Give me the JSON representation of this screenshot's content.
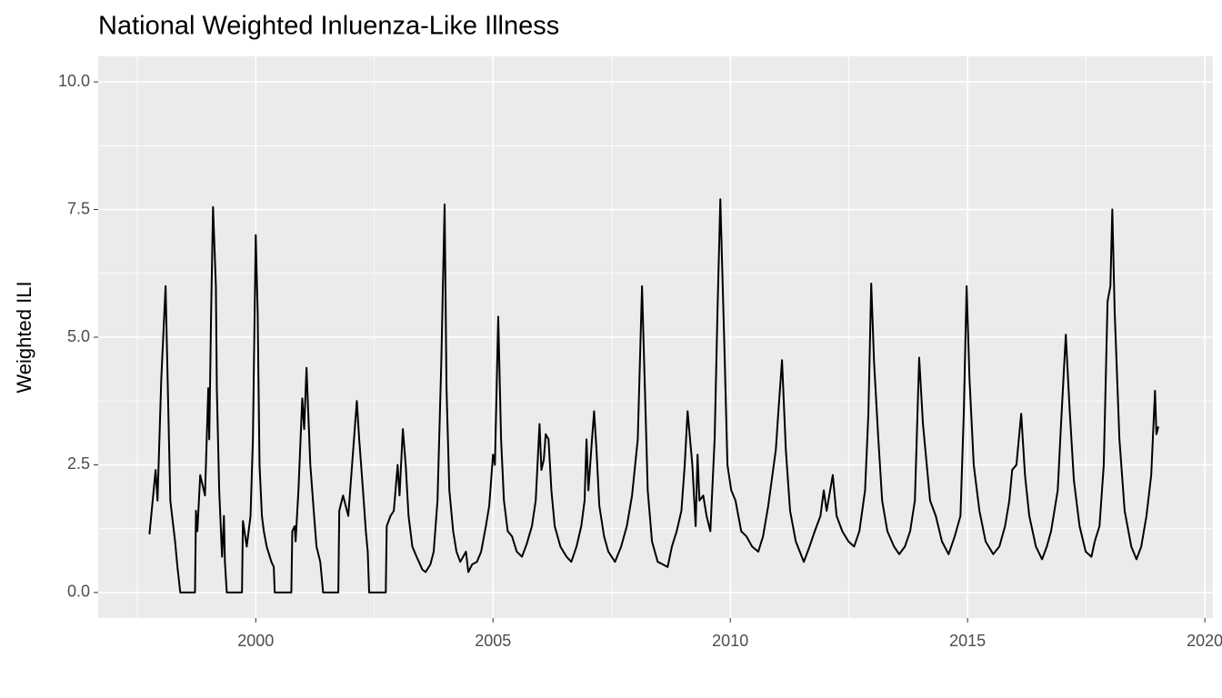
{
  "chart_data": {
    "type": "line",
    "title": "National Weighted Inluenza-Like Illness",
    "y_label": "Weighted ILI",
    "xlim": [
      1996.68,
      2020.17
    ],
    "ylim": [
      -0.5,
      10.5
    ],
    "xticks": [
      2000,
      2005,
      2010,
      2015,
      2020
    ],
    "yticks": [
      {
        "value": 0,
        "label": "0.0"
      },
      {
        "value": 2.5,
        "label": "2.5"
      },
      {
        "value": 5,
        "label": "5.0"
      },
      {
        "value": 7.5,
        "label": "7.5"
      },
      {
        "value": 10,
        "label": "10.0"
      }
    ],
    "x_minor_grid": [
      1997.5,
      2002.5,
      2007.5,
      2012.5,
      2017.5
    ],
    "y_minor_grid": [
      1.25,
      3.75,
      6.25,
      8.75
    ],
    "grid": true,
    "series": [
      {
        "color": "#000000",
        "x": [
          1997.76,
          1997.89,
          1997.93,
          1998.01,
          1998.1,
          1998.2,
          1998.3,
          1998.35,
          1998.41,
          1998.72,
          1998.74,
          1998.77,
          1998.83,
          1998.93,
          1999.0,
          1999.02,
          1999.06,
          1999.1,
          1999.16,
          1999.18,
          1999.23,
          1999.29,
          1999.33,
          1999.35,
          1999.39,
          1999.71,
          1999.73,
          1999.81,
          1999.89,
          1999.94,
          2000.0,
          2000.04,
          2000.08,
          2000.13,
          2000.17,
          2000.23,
          2000.33,
          2000.38,
          2000.4,
          2000.75,
          2000.77,
          2000.82,
          2000.84,
          2000.9,
          2000.98,
          2001.02,
          2001.07,
          2001.15,
          2001.23,
          2001.28,
          2001.36,
          2001.42,
          2001.74,
          2001.76,
          2001.84,
          2001.95,
          2002.03,
          2002.13,
          2002.18,
          2002.26,
          2002.32,
          2002.36,
          2002.39,
          2002.74,
          2002.76,
          2002.84,
          2002.91,
          2002.99,
          2003.03,
          2003.1,
          2003.16,
          2003.22,
          2003.3,
          2003.39,
          2003.51,
          2003.58,
          2003.68,
          2003.75,
          2003.83,
          2003.91,
          2003.98,
          2004.02,
          2004.08,
          2004.16,
          2004.23,
          2004.31,
          2004.37,
          2004.43,
          2004.48,
          2004.56,
          2004.66,
          2004.75,
          2004.85,
          2004.92,
          2005.0,
          2005.04,
          2005.11,
          2005.17,
          2005.23,
          2005.31,
          2005.4,
          2005.5,
          2005.61,
          2005.71,
          2005.82,
          2005.9,
          2005.98,
          2006.02,
          2006.07,
          2006.11,
          2006.17,
          2006.23,
          2006.3,
          2006.42,
          2006.55,
          2006.65,
          2006.76,
          2006.86,
          2006.93,
          2006.97,
          2007.01,
          2007.07,
          2007.13,
          2007.18,
          2007.24,
          2007.34,
          2007.43,
          2007.57,
          2007.7,
          2007.82,
          2007.93,
          2008.05,
          2008.14,
          2008.2,
          2008.26,
          2008.35,
          2008.47,
          2008.58,
          2008.68,
          2008.77,
          2008.87,
          2008.97,
          2009.04,
          2009.1,
          2009.2,
          2009.27,
          2009.31,
          2009.35,
          2009.43,
          2009.5,
          2009.58,
          2009.67,
          2009.73,
          2009.79,
          2009.87,
          2009.94,
          2010.02,
          2010.11,
          2010.23,
          2010.34,
          2010.46,
          2010.59,
          2010.69,
          2010.8,
          2010.96,
          2011.01,
          2011.09,
          2011.17,
          2011.26,
          2011.38,
          2011.55,
          2011.67,
          2011.78,
          2011.9,
          2011.97,
          2012.03,
          2012.16,
          2012.24,
          2012.36,
          2012.49,
          2012.61,
          2012.72,
          2012.84,
          2012.91,
          2012.97,
          2013.03,
          2013.12,
          2013.2,
          2013.31,
          2013.45,
          2013.56,
          2013.68,
          2013.79,
          2013.89,
          2013.98,
          2014.06,
          2014.14,
          2014.21,
          2014.33,
          2014.46,
          2014.6,
          2014.73,
          2014.85,
          2014.92,
          2014.98,
          2015.04,
          2015.13,
          2015.25,
          2015.38,
          2015.54,
          2015.67,
          2015.79,
          2015.88,
          2015.94,
          2016.03,
          2016.13,
          2016.21,
          2016.3,
          2016.44,
          2016.57,
          2016.67,
          2016.76,
          2016.9,
          2016.97,
          2017.07,
          2017.15,
          2017.24,
          2017.36,
          2017.49,
          2017.61,
          2017.68,
          2017.78,
          2017.87,
          2017.95,
          2018.01,
          2018.05,
          2018.1,
          2018.2,
          2018.31,
          2018.45,
          2018.56,
          2018.66,
          2018.77,
          2018.87,
          2018.95,
          2018.98,
          2019.02
        ],
        "values": [
          1.14,
          2.4,
          1.8,
          4.2,
          6.0,
          1.8,
          1.0,
          0.5,
          0,
          0,
          1.6,
          1.2,
          2.3,
          1.9,
          4.0,
          3.0,
          5.5,
          7.55,
          6.0,
          4.0,
          2.0,
          0.7,
          1.5,
          0.6,
          0,
          0,
          1.4,
          0.9,
          1.5,
          3.0,
          7.0,
          5.5,
          2.5,
          1.5,
          1.2,
          0.9,
          0.6,
          0.5,
          0,
          0,
          1.2,
          1.3,
          1.0,
          2.0,
          3.8,
          3.2,
          4.4,
          2.5,
          1.5,
          0.9,
          0.6,
          0,
          0,
          1.6,
          1.9,
          1.5,
          2.5,
          3.75,
          3.0,
          2.0,
          1.2,
          0.8,
          0,
          0,
          1.3,
          1.5,
          1.6,
          2.5,
          1.9,
          3.2,
          2.5,
          1.5,
          0.9,
          0.7,
          0.45,
          0.4,
          0.55,
          0.8,
          1.8,
          4.5,
          7.6,
          4.0,
          2.0,
          1.2,
          0.8,
          0.6,
          0.7,
          0.8,
          0.4,
          0.55,
          0.6,
          0.8,
          1.3,
          1.7,
          2.7,
          2.5,
          5.4,
          3.0,
          1.8,
          1.2,
          1.1,
          0.8,
          0.7,
          0.95,
          1.3,
          1.8,
          3.3,
          2.4,
          2.6,
          3.1,
          3.0,
          2.0,
          1.3,
          0.9,
          0.7,
          0.6,
          0.9,
          1.3,
          1.8,
          3.0,
          2.0,
          2.8,
          3.55,
          2.8,
          1.7,
          1.1,
          0.8,
          0.6,
          0.9,
          1.3,
          1.9,
          3.0,
          6.0,
          4.0,
          2.0,
          1.0,
          0.6,
          0.55,
          0.5,
          0.9,
          1.2,
          1.6,
          2.5,
          3.55,
          2.5,
          1.3,
          2.7,
          1.8,
          1.9,
          1.5,
          1.2,
          3.0,
          5.5,
          7.7,
          5.0,
          2.5,
          2.0,
          1.8,
          1.2,
          1.1,
          0.9,
          0.8,
          1.1,
          1.7,
          2.8,
          3.5,
          4.55,
          2.8,
          1.6,
          1.0,
          0.6,
          0.9,
          1.2,
          1.5,
          2.0,
          1.6,
          2.3,
          1.5,
          1.2,
          1.0,
          0.9,
          1.2,
          2.0,
          3.5,
          6.05,
          4.5,
          3.0,
          1.8,
          1.2,
          0.9,
          0.75,
          0.9,
          1.2,
          1.8,
          4.6,
          3.3,
          2.5,
          1.8,
          1.5,
          1.0,
          0.75,
          1.1,
          1.5,
          3.5,
          6.0,
          4.2,
          2.5,
          1.6,
          1.0,
          0.75,
          0.9,
          1.3,
          1.8,
          2.4,
          2.5,
          3.5,
          2.3,
          1.5,
          0.9,
          0.65,
          0.9,
          1.2,
          2.0,
          3.3,
          5.05,
          3.6,
          2.2,
          1.3,
          0.8,
          0.7,
          1.0,
          1.3,
          2.5,
          5.7,
          6.0,
          7.5,
          5.5,
          3.0,
          1.6,
          0.9,
          0.65,
          0.9,
          1.5,
          2.3,
          3.95,
          3.1,
          3.25
        ]
      }
    ]
  }
}
